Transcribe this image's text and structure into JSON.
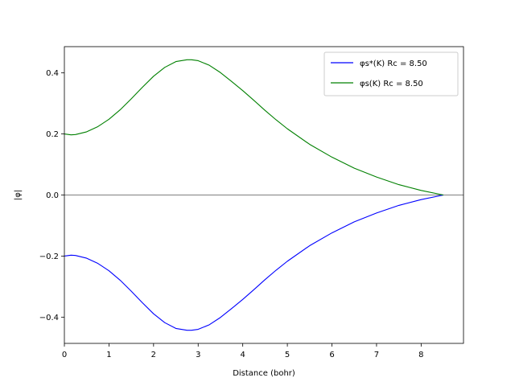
{
  "chart_data": {
    "type": "line",
    "xlabel": "Distance (bohr)",
    "ylabel": "|φ|",
    "xlim": [
      0,
      8.95
    ],
    "ylim": [
      -0.486,
      0.486
    ],
    "xticks": [
      0,
      1,
      2,
      3,
      4,
      5,
      6,
      7,
      8
    ],
    "xtick_labels": [
      "0",
      "1",
      "2",
      "3",
      "4",
      "5",
      "6",
      "7",
      "8"
    ],
    "yticks": [
      -0.4,
      -0.2,
      0.0,
      0.2,
      0.4
    ],
    "ytick_labels": [
      "−0.4",
      "−0.2",
      "0.0",
      "0.2",
      "0.4"
    ],
    "grid": false,
    "legend_position": "top-right",
    "zero_line": true,
    "series": [
      {
        "name": "φs*(K)  Rc = 8.50",
        "color": "#0000ff",
        "x": [
          0,
          0.15,
          0.25,
          0.5,
          0.75,
          1.0,
          1.25,
          1.5,
          1.75,
          2.0,
          2.25,
          2.5,
          2.75,
          2.85,
          3.0,
          3.25,
          3.5,
          3.75,
          4.0,
          4.25,
          4.5,
          4.75,
          5.0,
          5.5,
          6.0,
          6.5,
          7.0,
          7.5,
          8.0,
          8.5
        ],
        "y": [
          -0.2,
          -0.197,
          -0.198,
          -0.207,
          -0.224,
          -0.248,
          -0.279,
          -0.315,
          -0.353,
          -0.389,
          -0.418,
          -0.437,
          -0.443,
          -0.443,
          -0.44,
          -0.425,
          -0.401,
          -0.372,
          -0.342,
          -0.31,
          -0.277,
          -0.246,
          -0.217,
          -0.166,
          -0.124,
          -0.088,
          -0.059,
          -0.034,
          -0.015,
          0.0
        ]
      },
      {
        "name": "φs(K)  Rc = 8.50",
        "color": "#008000",
        "x": [
          0,
          0.15,
          0.25,
          0.5,
          0.75,
          1.0,
          1.25,
          1.5,
          1.75,
          2.0,
          2.25,
          2.5,
          2.75,
          2.85,
          3.0,
          3.25,
          3.5,
          3.75,
          4.0,
          4.25,
          4.5,
          4.75,
          5.0,
          5.5,
          6.0,
          6.5,
          7.0,
          7.5,
          8.0,
          8.5
        ],
        "y": [
          0.2,
          0.197,
          0.198,
          0.207,
          0.224,
          0.248,
          0.279,
          0.315,
          0.353,
          0.389,
          0.418,
          0.437,
          0.443,
          0.443,
          0.44,
          0.425,
          0.401,
          0.372,
          0.342,
          0.31,
          0.277,
          0.246,
          0.217,
          0.166,
          0.124,
          0.088,
          0.059,
          0.034,
          0.015,
          0.0
        ]
      }
    ]
  }
}
